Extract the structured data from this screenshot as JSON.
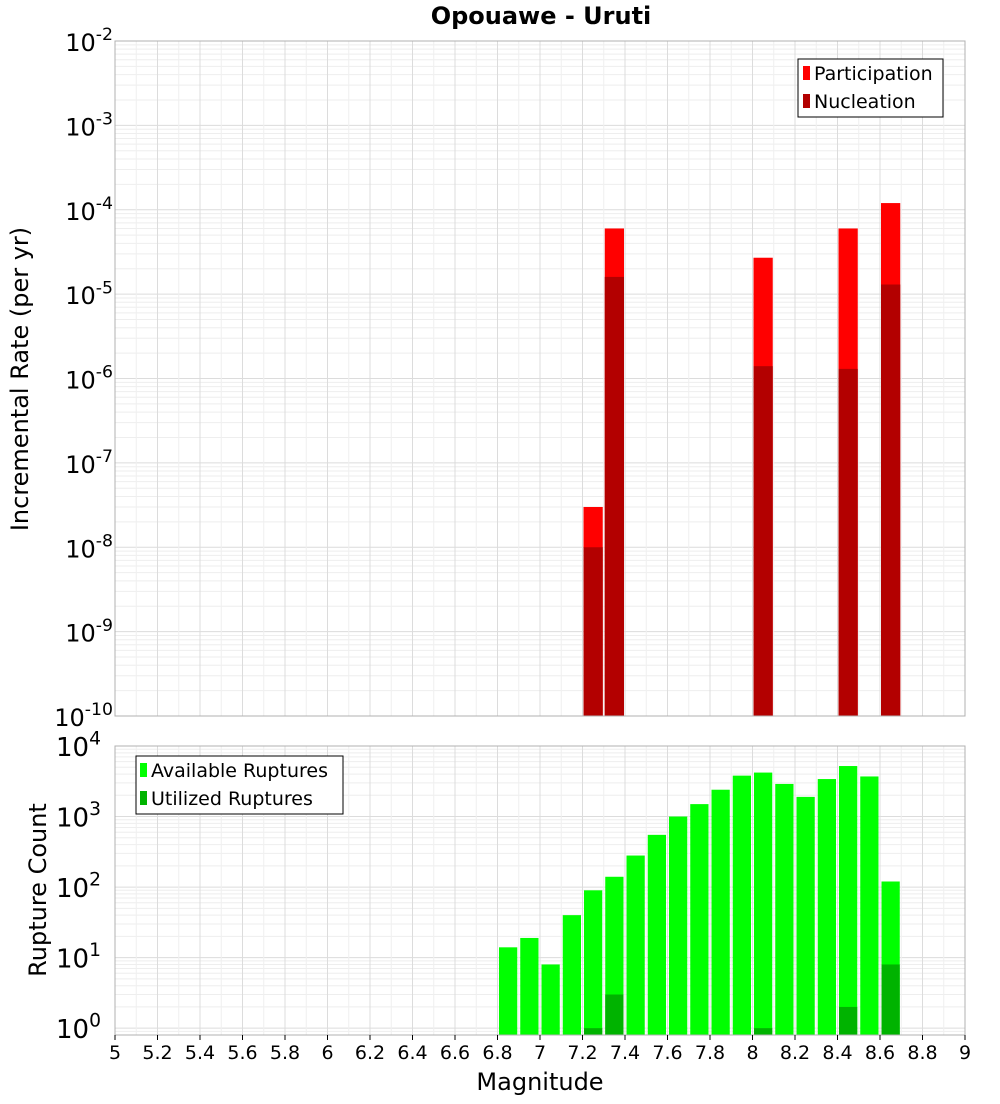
{
  "title": "Opouawe - Uruti",
  "chart_data": [
    {
      "type": "bar",
      "panel": "top",
      "ylabel": "Incremental Rate (per yr)",
      "yscale": "log",
      "ylim": [
        1e-10,
        0.01
      ],
      "xlim": [
        5.0,
        9.0
      ],
      "y_ticks": [
        "10^-10",
        "10^-9",
        "10^-8",
        "10^-7",
        "10^-6",
        "10^-5",
        "10^-4",
        "10^-3",
        "10^-2"
      ],
      "grid": true,
      "legend_position": "top-right",
      "series": [
        {
          "name": "Participation",
          "color": "#ff0000",
          "x": [
            7.25,
            7.35,
            8.05,
            8.45,
            8.65
          ],
          "values": [
            3e-08,
            6e-05,
            2.7e-05,
            6e-05,
            0.00012
          ]
        },
        {
          "name": "Nucleation",
          "color": "#b30000",
          "x": [
            7.25,
            7.35,
            8.05,
            8.45,
            8.65
          ],
          "values": [
            1e-08,
            1.6e-05,
            1.4e-06,
            1.3e-06,
            1.3e-05
          ]
        }
      ]
    },
    {
      "type": "bar",
      "panel": "bottom",
      "ylabel": "Rupture Count",
      "xlabel": "Magnitude",
      "yscale": "log",
      "ylim": [
        0.8,
        10000
      ],
      "xlim": [
        5.0,
        9.0
      ],
      "y_ticks": [
        "10^0",
        "10^1",
        "10^2",
        "10^3",
        "10^4"
      ],
      "x_ticks": [
        "5",
        "5.2",
        "5.4",
        "5.6",
        "5.8",
        "6",
        "6.2",
        "6.4",
        "6.6",
        "6.8",
        "7",
        "7.2",
        "7.4",
        "7.6",
        "7.8",
        "8",
        "8.2",
        "8.4",
        "8.6",
        "8.8",
        "9"
      ],
      "grid": true,
      "legend_position": "top-left",
      "series": [
        {
          "name": "Available Ruptures",
          "color": "#00ff00",
          "x": [
            6.85,
            6.95,
            7.05,
            7.15,
            7.25,
            7.35,
            7.45,
            7.55,
            7.65,
            7.75,
            7.85,
            7.95,
            8.05,
            8.15,
            8.25,
            8.35,
            8.45,
            8.55,
            8.65
          ],
          "values": [
            14,
            19,
            8,
            40,
            90,
            140,
            280,
            550,
            1000,
            1500,
            2400,
            3800,
            4200,
            2900,
            1900,
            3400,
            5200,
            3700,
            120
          ]
        },
        {
          "name": "Utilized Ruptures",
          "color": "#00b300",
          "x": [
            7.25,
            7.35,
            8.05,
            8.45,
            8.65
          ],
          "values": [
            1,
            3,
            1,
            2,
            8
          ]
        }
      ]
    }
  ]
}
